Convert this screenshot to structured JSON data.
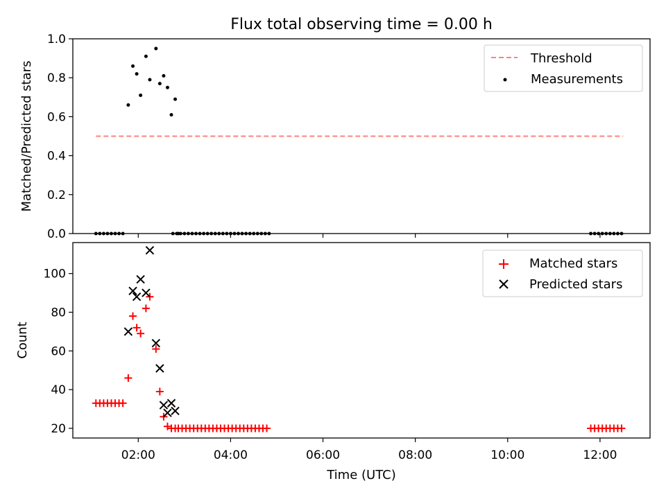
{
  "chart_data": [
    {
      "type": "scatter",
      "title": "Flux total observing time = 0.00 h",
      "xlabel": "",
      "ylabel": "Matched/Predicted stars",
      "ylim": [
        0,
        1.0
      ],
      "yticks": [
        "0.0",
        "0.2",
        "0.4",
        "0.6",
        "0.8",
        "1.0"
      ],
      "xlim": [
        "00:35",
        "13:05"
      ],
      "legend": {
        "placement": "top-right",
        "entries": [
          "Threshold",
          "Measurements"
        ]
      },
      "threshold": {
        "name": "Threshold",
        "style": "dashed",
        "color": "#ff7f7f",
        "x": [
          "01:05",
          "12:30"
        ],
        "y": 0.5
      },
      "series": [
        {
          "name": "Measurements",
          "color": "#000000",
          "x": [
            "01:05",
            "01:10",
            "01:15",
            "01:20",
            "01:25",
            "01:30",
            "01:35",
            "01:40",
            "01:47",
            "01:53",
            "01:58",
            "02:03",
            "02:10",
            "02:15",
            "02:23",
            "02:28",
            "02:33",
            "02:38",
            "02:43",
            "02:48",
            "02:52",
            "02:45",
            "02:50",
            "02:55",
            "03:00",
            "03:05",
            "03:10",
            "03:15",
            "03:20",
            "03:25",
            "03:30",
            "03:35",
            "03:40",
            "03:45",
            "03:50",
            "03:55",
            "04:00",
            "04:05",
            "04:10",
            "04:15",
            "04:20",
            "04:25",
            "04:30",
            "04:35",
            "04:40",
            "04:45",
            "04:50",
            "11:48",
            "11:53",
            "11:58",
            "12:03",
            "12:08",
            "12:13",
            "12:18",
            "12:23",
            "12:28"
          ],
          "y": [
            0,
            0,
            0,
            0,
            0,
            0,
            0,
            0,
            0.66,
            0.86,
            0.82,
            0.71,
            0.91,
            0.79,
            0.95,
            0.77,
            0.81,
            0.75,
            0.61,
            0.69,
            0,
            0,
            0,
            0,
            0,
            0,
            0,
            0,
            0,
            0,
            0,
            0,
            0,
            0,
            0,
            0,
            0,
            0,
            0,
            0,
            0,
            0,
            0,
            0,
            0,
            0,
            0,
            0,
            0,
            0,
            0,
            0,
            0,
            0,
            0,
            0
          ]
        }
      ]
    },
    {
      "type": "scatter",
      "title": "",
      "xlabel": "Time (UTC)",
      "ylabel": "Count",
      "ylim": [
        15,
        116
      ],
      "yticks": [
        "20",
        "40",
        "60",
        "80",
        "100"
      ],
      "xlim": [
        "00:35",
        "13:05"
      ],
      "xticks": [
        "02:00",
        "04:00",
        "06:00",
        "08:00",
        "10:00",
        "12:00"
      ],
      "legend": {
        "placement": "top-right",
        "entries": [
          "Matched stars",
          "Predicted stars"
        ]
      },
      "series": [
        {
          "name": "Matched stars",
          "marker": "plus",
          "color": "#ff0000",
          "x": [
            "01:05",
            "01:10",
            "01:15",
            "01:20",
            "01:25",
            "01:30",
            "01:35",
            "01:40",
            "01:47",
            "01:53",
            "01:58",
            "02:03",
            "02:10",
            "02:15",
            "02:23",
            "02:28",
            "02:33",
            "02:38",
            "02:43",
            "02:48",
            "02:52",
            "02:57",
            "03:02",
            "03:07",
            "03:12",
            "03:17",
            "03:22",
            "03:27",
            "03:32",
            "03:37",
            "03:42",
            "03:47",
            "03:52",
            "03:57",
            "04:02",
            "04:07",
            "04:12",
            "04:17",
            "04:22",
            "04:27",
            "04:32",
            "04:37",
            "04:42",
            "04:47",
            "11:48",
            "11:53",
            "11:58",
            "12:03",
            "12:08",
            "12:13",
            "12:18",
            "12:23",
            "12:28"
          ],
          "y": [
            33,
            33,
            33,
            33,
            33,
            33,
            33,
            33,
            46,
            78,
            72,
            69,
            82,
            88,
            61,
            39,
            26,
            21,
            20,
            20,
            20,
            20,
            20,
            20,
            20,
            20,
            20,
            20,
            20,
            20,
            20,
            20,
            20,
            20,
            20,
            20,
            20,
            20,
            20,
            20,
            20,
            20,
            20,
            20,
            20,
            20,
            20,
            20,
            20,
            20,
            20,
            20,
            20
          ]
        },
        {
          "name": "Predicted stars",
          "marker": "x",
          "color": "#000000",
          "x": [
            "01:47",
            "01:53",
            "01:58",
            "02:03",
            "02:10",
            "02:15",
            "02:23",
            "02:28",
            "02:33",
            "02:38",
            "02:43",
            "02:48"
          ],
          "y": [
            70,
            91,
            88,
            97,
            90,
            112,
            64,
            51,
            32,
            28,
            33,
            29
          ]
        }
      ]
    }
  ]
}
